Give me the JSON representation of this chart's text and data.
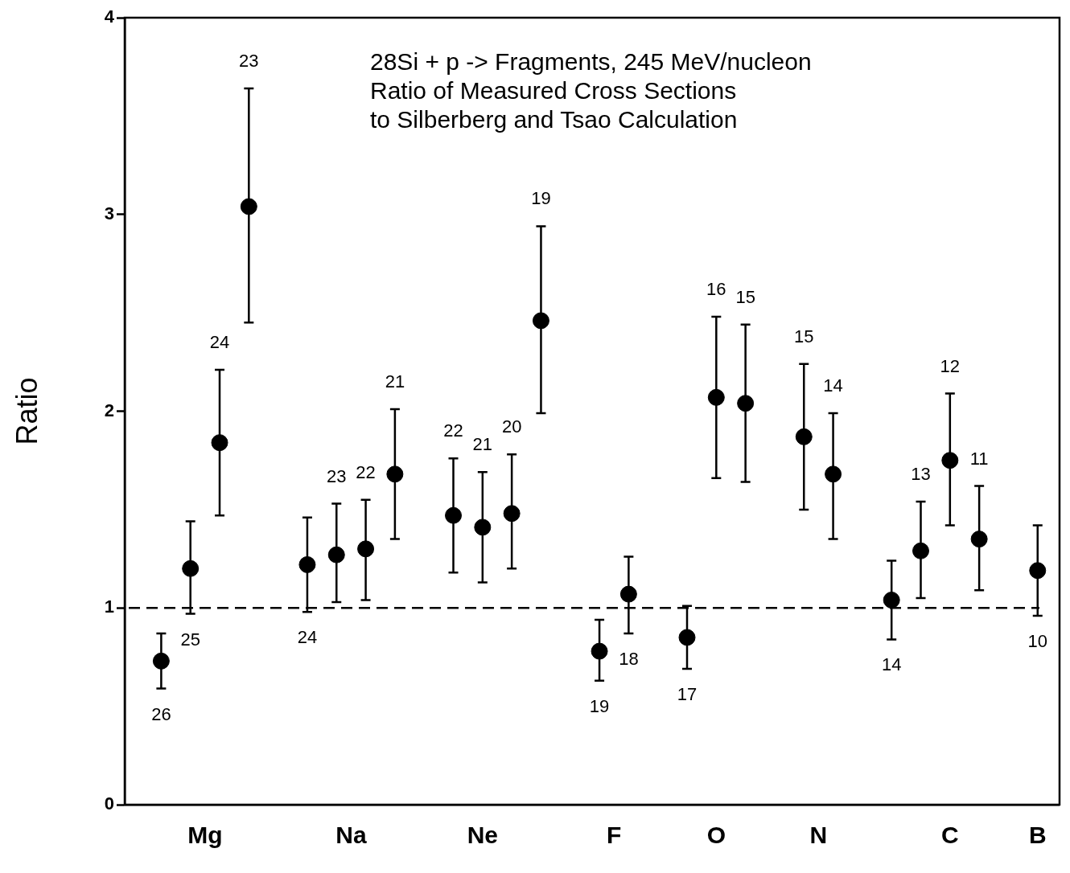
{
  "chart_data": {
    "type": "scatter",
    "title": "28Si + p -> Fragments, 245 MeV/nucleon\nRatio of Measured Cross Sections\nto Silberberg and Tsao Calculation",
    "ylabel": "Ratio",
    "categories": [
      null,
      null,
      null,
      null,
      null,
      "Mg",
      null,
      null,
      null,
      null,
      null,
      null,
      null,
      null,
      null,
      "Na",
      null,
      null,
      null,
      null,
      null,
      null,
      null,
      null,
      "Ne",
      null,
      null,
      null,
      null,
      null,
      null,
      null,
      null,
      "F",
      null,
      null,
      null,
      null,
      null,
      null,
      "O",
      null,
      null,
      null,
      null,
      null,
      null,
      "N",
      null,
      null,
      null,
      null,
      null,
      null,
      null,
      null,
      "C",
      null,
      null,
      null,
      null,
      null,
      "B",
      null
    ],
    "ylim": [
      0,
      4
    ],
    "yticks": [
      0,
      1,
      2,
      3,
      4
    ],
    "grid": false,
    "legend": false,
    "marker": "circle",
    "series": [
      {
        "color": "#000000",
        "values": [
          null,
          null,
          0.73,
          null,
          1.2,
          null,
          1.84,
          null,
          3.04,
          null,
          null,
          null,
          1.22,
          null,
          1.27,
          null,
          1.3,
          null,
          1.68,
          null,
          null,
          null,
          1.47,
          null,
          1.41,
          null,
          1.48,
          null,
          2.46,
          null,
          null,
          null,
          0.78,
          null,
          1.07,
          null,
          null,
          null,
          0.85,
          null,
          2.07,
          null,
          2.04,
          null,
          null,
          null,
          1.87,
          null,
          1.68,
          null,
          null,
          null,
          1.04,
          null,
          1.29,
          null,
          1.75,
          null,
          1.35,
          null,
          null,
          null,
          1.19,
          null
        ],
        "errors": [
          null,
          null,
          [
            0.59,
            0.87
          ],
          null,
          [
            0.97,
            1.44
          ],
          null,
          [
            1.47,
            2.21
          ],
          null,
          [
            2.45,
            3.64
          ],
          null,
          null,
          null,
          [
            0.98,
            1.46
          ],
          null,
          [
            1.03,
            1.53
          ],
          null,
          [
            1.04,
            1.55
          ],
          null,
          [
            1.35,
            2.01
          ],
          null,
          null,
          null,
          [
            1.18,
            1.76
          ],
          null,
          [
            1.13,
            1.69
          ],
          null,
          [
            1.2,
            1.78
          ],
          null,
          [
            1.99,
            2.94
          ],
          null,
          null,
          null,
          [
            0.63,
            0.94
          ],
          null,
          [
            0.87,
            1.26
          ],
          null,
          null,
          null,
          [
            0.69,
            1.01
          ],
          null,
          [
            1.66,
            2.48
          ],
          null,
          [
            1.64,
            2.44
          ],
          null,
          null,
          null,
          [
            1.5,
            2.24
          ],
          null,
          [
            1.35,
            1.99
          ],
          null,
          null,
          null,
          [
            0.84,
            1.24
          ],
          null,
          [
            1.05,
            1.54
          ],
          null,
          [
            1.42,
            2.09
          ],
          null,
          [
            1.09,
            1.62
          ],
          null,
          null,
          null,
          [
            0.96,
            1.42
          ],
          null
        ]
      }
    ],
    "annotations": [
      "26",
      "25",
      "24",
      "23",
      "24",
      "23",
      "22",
      "21",
      "22",
      "21",
      "20",
      "19",
      "19",
      "18",
      "17",
      "16",
      "15",
      "15",
      "14",
      "14",
      "13",
      "12",
      "11",
      "10"
    ],
    "ref_lines": [
      {
        "axis": "y",
        "value": 1,
        "color": "#000000",
        "line_style": "dashed"
      }
    ]
  }
}
